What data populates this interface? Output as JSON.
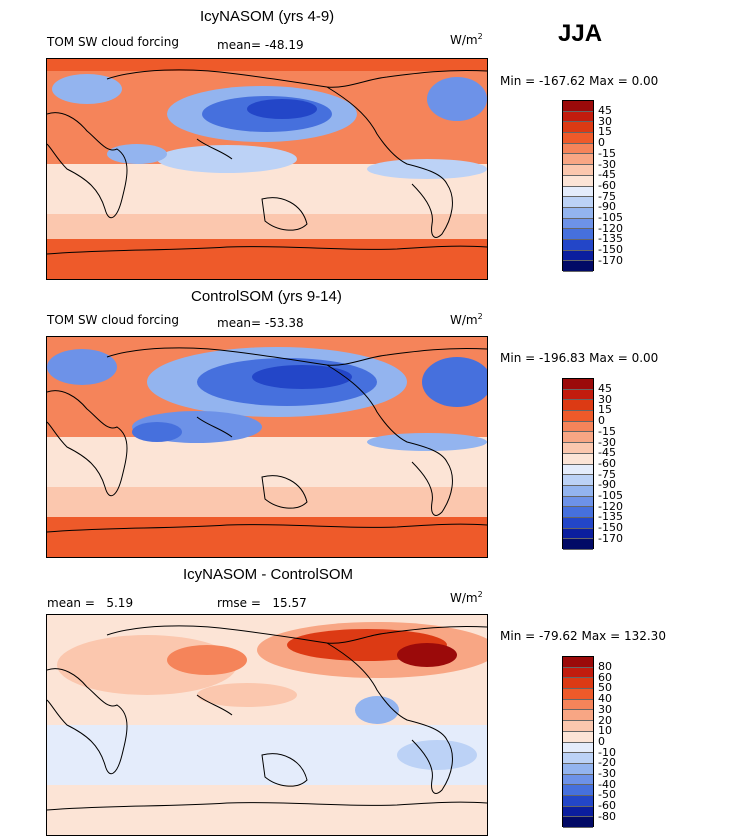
{
  "season": "JJA",
  "unit_main": "W/m",
  "unit_sup": "2",
  "panels": [
    {
      "title": "IcyNASOM (yrs 4-9)",
      "field": "TOM SW cloud forcing",
      "mean_label": "mean=",
      "mean": "-48.19",
      "minmax": "Min = -167.62 Max =   0.00",
      "levels": [
        "45",
        "30",
        "15",
        "0",
        "-15",
        "-30",
        "-45",
        "-60",
        "-75",
        "-90",
        "-105",
        "-120",
        "-135",
        "-150",
        "-170"
      ],
      "colors": [
        "#9b0a0a",
        "#c21c0e",
        "#dc3a14",
        "#ee5a2a",
        "#f5845a",
        "#f8a684",
        "#fbc7ae",
        "#fce4d6",
        "#e4ecfb",
        "#bcd2f6",
        "#93b4ef",
        "#6d92e8",
        "#4670dd",
        "#2346c8",
        "#0b1e9e",
        "#020a66"
      ]
    },
    {
      "title": "ControlSOM (yrs 9-14)",
      "field": "TOM SW cloud forcing",
      "mean_label": "mean=",
      "mean": "-53.38",
      "minmax": "Min = -196.83 Max =   0.00",
      "levels": [
        "45",
        "30",
        "15",
        "0",
        "-15",
        "-30",
        "-45",
        "-60",
        "-75",
        "-90",
        "-105",
        "-120",
        "-135",
        "-150",
        "-170"
      ],
      "colors": [
        "#9b0a0a",
        "#c21c0e",
        "#dc3a14",
        "#ee5a2a",
        "#f5845a",
        "#f8a684",
        "#fbc7ae",
        "#fce4d6",
        "#e4ecfb",
        "#bcd2f6",
        "#93b4ef",
        "#6d92e8",
        "#4670dd",
        "#2346c8",
        "#0b1e9e",
        "#020a66"
      ]
    },
    {
      "title": "IcyNASOM - ControlSOM",
      "mean_label": "mean =",
      "mean": "5.19",
      "rmse_label": "rmse =",
      "rmse": "15.57",
      "minmax": "Min = -79.62 Max = 132.30",
      "levels": [
        "80",
        "60",
        "50",
        "40",
        "30",
        "20",
        "10",
        "0",
        "-10",
        "-20",
        "-30",
        "-40",
        "-50",
        "-60",
        "-80"
      ],
      "colors": [
        "#9b0a0a",
        "#c21c0e",
        "#dc3a14",
        "#ee5a2a",
        "#f5845a",
        "#f8a684",
        "#fbc7ae",
        "#fce4d6",
        "#e4ecfb",
        "#bcd2f6",
        "#93b4ef",
        "#6d92e8",
        "#4670dd",
        "#2346c8",
        "#0b1e9e",
        "#020a66"
      ]
    }
  ]
}
